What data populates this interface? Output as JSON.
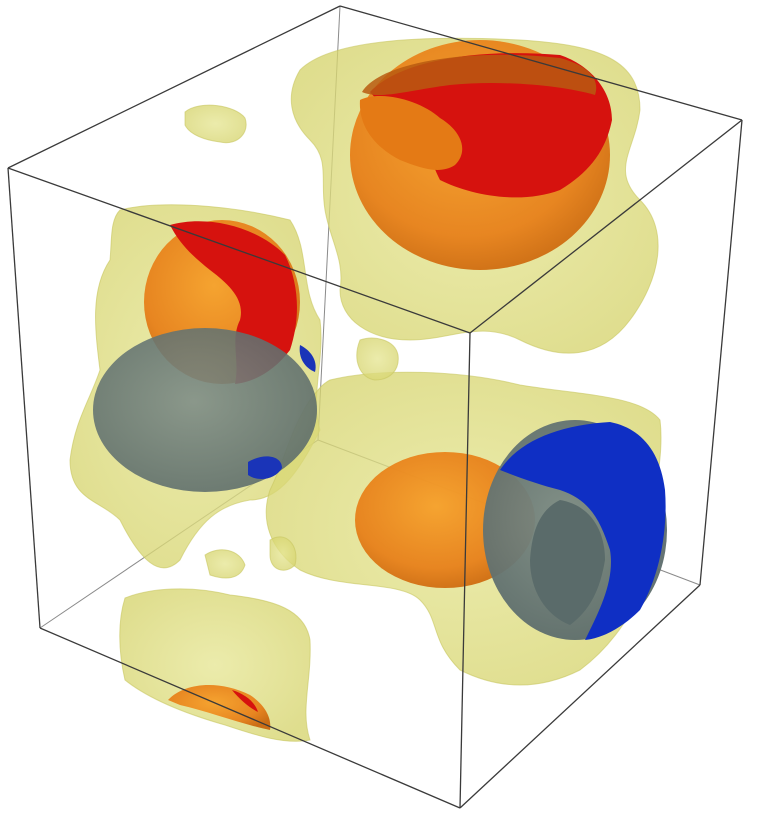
{
  "figure": {
    "colors": {
      "background": "#ffffff",
      "box_edge": "#555555",
      "isosurface_yellow": "#dcdc7a",
      "surface_orange": "#f08a1c",
      "surface_red": "#e01010",
      "surface_blue": "#1030c0",
      "surface_slate": "#6f7f78"
    }
  }
}
